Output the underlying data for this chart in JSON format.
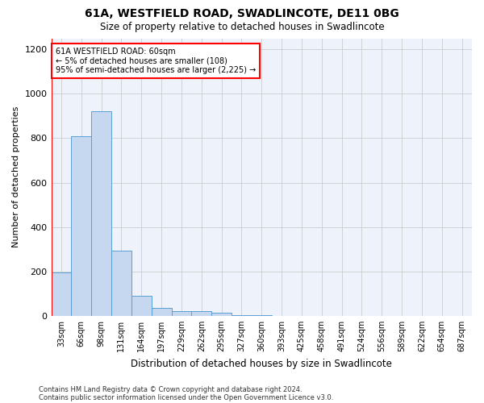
{
  "title": "61A, WESTFIELD ROAD, SWADLINCOTE, DE11 0BG",
  "subtitle": "Size of property relative to detached houses in Swadlincote",
  "xlabel": "Distribution of detached houses by size in Swadlincote",
  "ylabel": "Number of detached properties",
  "bin_labels": [
    "33sqm",
    "66sqm",
    "98sqm",
    "131sqm",
    "164sqm",
    "197sqm",
    "229sqm",
    "262sqm",
    "295sqm",
    "327sqm",
    "360sqm",
    "393sqm",
    "425sqm",
    "458sqm",
    "491sqm",
    "524sqm",
    "556sqm",
    "589sqm",
    "622sqm",
    "654sqm",
    "687sqm"
  ],
  "bar_values": [
    195,
    810,
    920,
    295,
    90,
    35,
    20,
    20,
    15,
    5,
    2,
    1,
    0,
    0,
    0,
    0,
    0,
    0,
    0,
    0,
    0
  ],
  "bar_color": "#c5d8f0",
  "bar_edge_color": "#5a9fd4",
  "annotation_text_line1": "61A WESTFIELD ROAD: 60sqm",
  "annotation_text_line2": "← 5% of detached houses are smaller (108)",
  "annotation_text_line3": "95% of semi-detached houses are larger (2,225) →",
  "annotation_box_color": "white",
  "annotation_box_edge": "red",
  "red_line_color": "red",
  "ylim": [
    0,
    1250
  ],
  "yticks": [
    0,
    200,
    400,
    600,
    800,
    1000,
    1200
  ],
  "bg_color": "#eef2fb",
  "grid_color": "#cccccc",
  "footnote1": "Contains HM Land Registry data © Crown copyright and database right 2024.",
  "footnote2": "Contains public sector information licensed under the Open Government Licence v3.0."
}
